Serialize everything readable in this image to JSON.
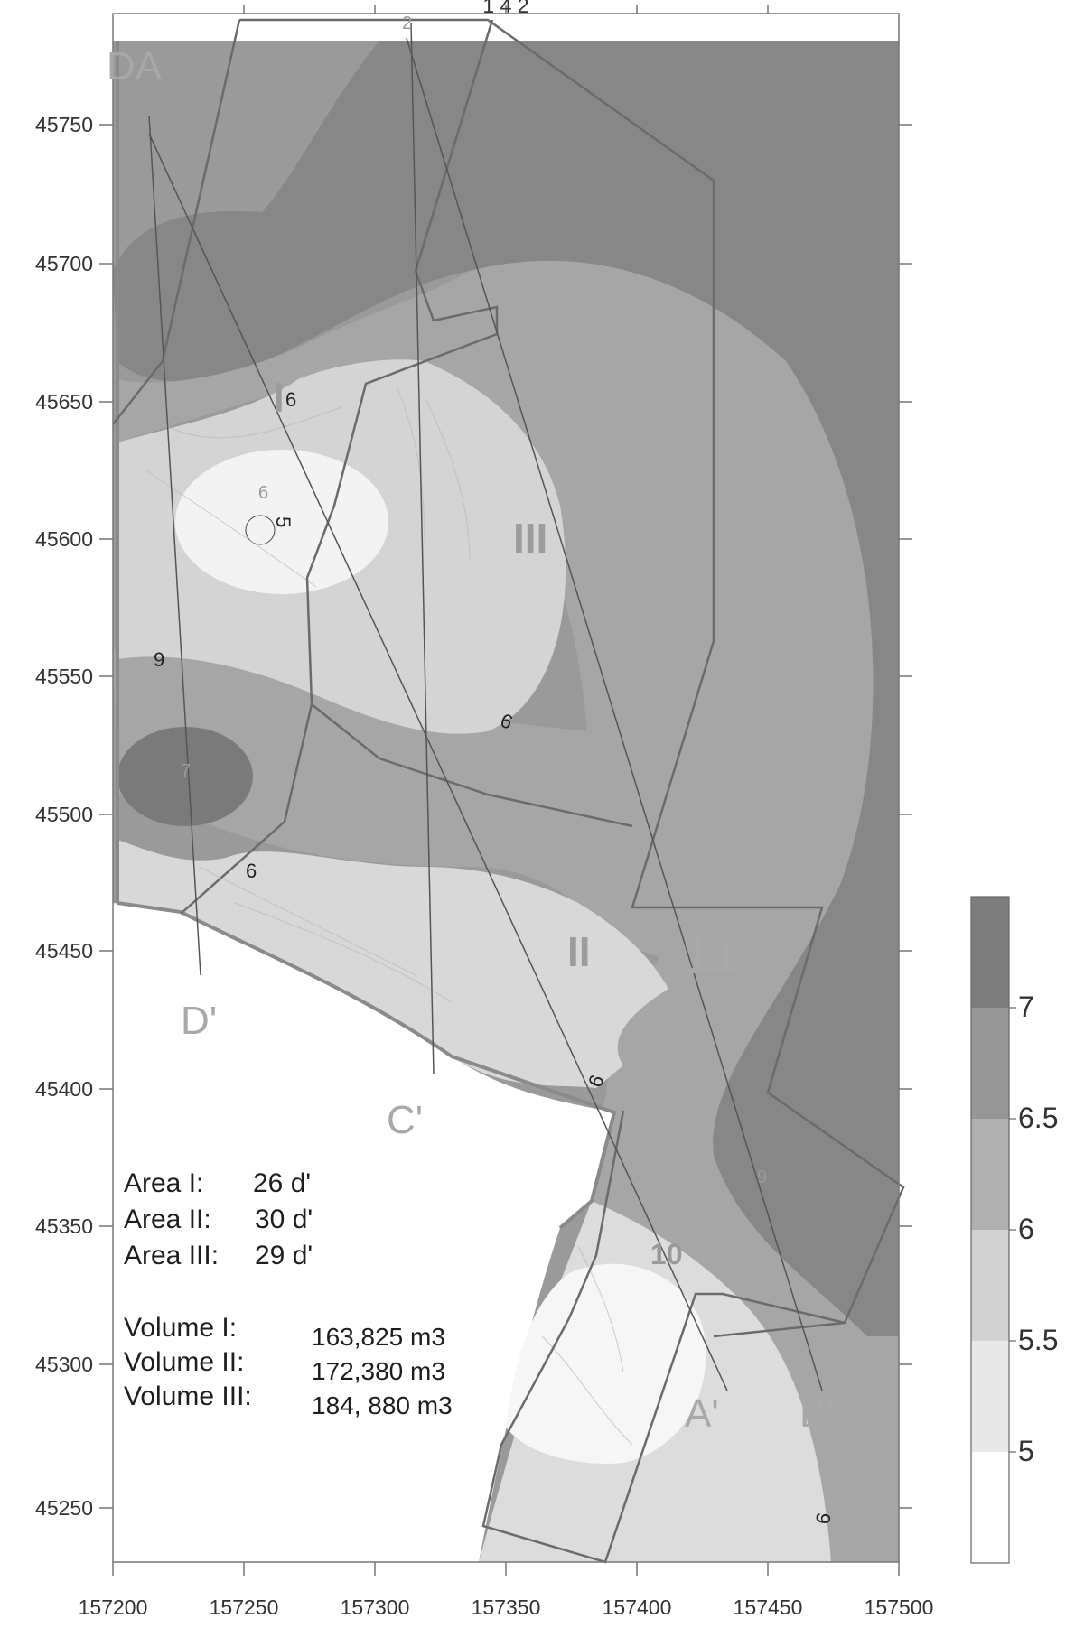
{
  "map": {
    "x_axis": {
      "ticks": [
        "157200",
        "157250",
        "157300",
        "157350",
        "157400",
        "157450",
        "157500"
      ]
    },
    "y_axis": {
      "ticks": [
        "45750",
        "45700",
        "45650",
        "45600",
        "45550",
        "45500",
        "45450",
        "45400",
        "45350",
        "45300",
        "45250"
      ]
    },
    "top_label": "1 4 2",
    "legend": {
      "labels": [
        "7",
        "6.5",
        "6",
        "5.5",
        "5"
      ],
      "colors": [
        "#7d7d7d",
        "#969696",
        "#b0b0b0",
        "#d2d2d2",
        "#e8e8e8",
        "#ffffff"
      ]
    },
    "section_labels": {
      "da": "DA",
      "d_prime": "D'",
      "c_prime": "C'",
      "a_prime": "A'",
      "b_prime": "B'",
      "eleven": "11"
    },
    "area_labels": {
      "i": "I",
      "ii": "II",
      "iii": "III"
    },
    "contour_labels": {
      "c6_area_i": "6",
      "c6_center": "6",
      "c5_center": "5",
      "c9_left": "9",
      "c9_mid": "9",
      "c6_lower": "6",
      "c9_lower": "9",
      "c9_right": "9",
      "c10": "10",
      "c9_bottom": "9"
    },
    "faint_markers": {
      "m1": "1",
      "m2": "2",
      "m3": "7"
    },
    "summary": {
      "area_i_label": "Area I:",
      "area_i_value": "26 d'",
      "area_ii_label": "Area II:",
      "area_ii_value": "30 d'",
      "area_iii_label": "Area III:",
      "area_iii_value": "29 d'",
      "volume_i_label": "Volume I:",
      "volume_i_value": "163,825 m3",
      "volume_ii_label": "Volume II:",
      "volume_ii_value": "172,380 m3",
      "volume_iii_label": "Volume III:",
      "volume_iii_value": "184, 880 m3"
    }
  }
}
